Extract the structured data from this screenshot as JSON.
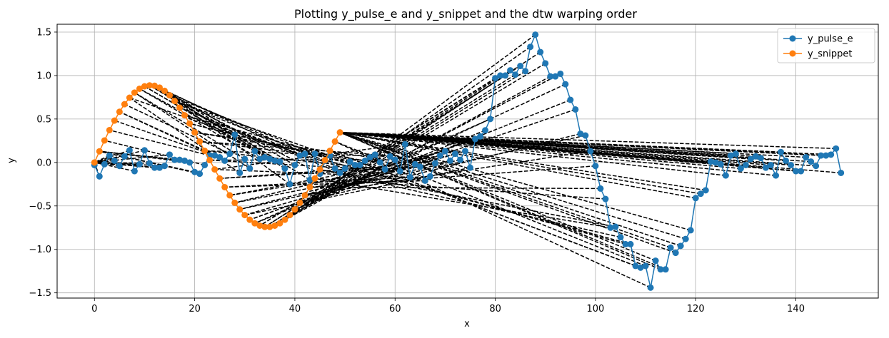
{
  "chart_data": {
    "type": "line",
    "title": "Plotting y_pulse_e and y_snippet and the dtw warping order",
    "xlabel": "x",
    "ylabel": "y",
    "xlim": [
      -7.45,
      156.45
    ],
    "ylim": [
      -1.56,
      1.59
    ],
    "xticks": [
      0,
      20,
      40,
      60,
      80,
      100,
      120,
      140
    ],
    "yticks": [
      -1.5,
      -1.0,
      -0.5,
      0.0,
      0.5,
      1.0,
      1.5
    ],
    "xtick_labels": [
      "0",
      "20",
      "40",
      "60",
      "80",
      "100",
      "120",
      "140"
    ],
    "ytick_labels": [
      "−1.5",
      "−1.0",
      "−0.5",
      "0.0",
      "0.5",
      "1.0",
      "1.5"
    ],
    "grid": true,
    "legend_position": "top-right",
    "series": [
      {
        "name": "y_pulse_e",
        "color": "#1f77b4",
        "marker": "circle",
        "x": [
          0,
          1,
          2,
          3,
          4,
          5,
          6,
          7,
          8,
          9,
          10,
          11,
          12,
          13,
          14,
          15,
          16,
          17,
          18,
          19,
          20,
          21,
          22,
          23,
          24,
          25,
          26,
          27,
          28,
          29,
          30,
          31,
          32,
          33,
          34,
          35,
          36,
          37,
          38,
          39,
          40,
          41,
          42,
          43,
          44,
          45,
          46,
          47,
          48,
          49,
          50,
          51,
          52,
          53,
          54,
          55,
          56,
          57,
          58,
          59,
          60,
          61,
          62,
          63,
          64,
          65,
          66,
          67,
          68,
          69,
          70,
          71,
          72,
          73,
          74,
          75,
          76,
          77,
          78,
          79,
          80,
          81,
          82,
          83,
          84,
          85,
          86,
          87,
          88,
          89,
          90,
          91,
          92,
          93,
          94,
          95,
          96,
          97,
          98,
          99,
          100,
          101,
          102,
          103,
          104,
          105,
          106,
          107,
          108,
          109,
          110,
          111,
          112,
          113,
          114,
          115,
          116,
          117,
          118,
          119,
          120,
          121,
          122,
          123,
          124,
          125,
          126,
          127,
          128,
          129,
          130,
          131,
          132,
          133,
          134,
          135,
          136,
          137,
          138,
          139,
          140,
          141,
          142,
          143,
          144,
          145,
          146,
          147,
          148,
          149
        ],
        "y": [
          -0.03,
          -0.16,
          -0.02,
          0.08,
          0.02,
          -0.04,
          0.07,
          0.14,
          -0.1,
          -0.02,
          0.14,
          -0.01,
          -0.06,
          -0.06,
          -0.04,
          0.09,
          0.03,
          0.03,
          0.02,
          0.0,
          -0.11,
          -0.13,
          -0.03,
          0.08,
          0.08,
          0.06,
          0.02,
          0.1,
          0.32,
          -0.12,
          0.04,
          -0.07,
          0.13,
          0.04,
          0.06,
          0.04,
          0.02,
          0.01,
          -0.07,
          -0.25,
          -0.03,
          0.08,
          0.1,
          -0.2,
          0.1,
          -0.13,
          0.02,
          0.08,
          -0.07,
          -0.12,
          -0.07,
          0.01,
          -0.03,
          -0.03,
          0.02,
          0.06,
          0.09,
          0.0,
          -0.08,
          0.07,
          0.03,
          -0.1,
          0.21,
          -0.17,
          -0.02,
          -0.05,
          -0.21,
          -0.16,
          -0.01,
          0.08,
          0.13,
          0.02,
          0.1,
          0.03,
          0.13,
          -0.06,
          0.27,
          0.3,
          0.37,
          0.5,
          0.97,
          1.0,
          1.0,
          1.06,
          1.01,
          1.11,
          1.05,
          1.33,
          1.47,
          1.27,
          1.14,
          0.99,
          0.99,
          1.02,
          0.9,
          0.72,
          0.61,
          0.33,
          0.31,
          0.13,
          -0.04,
          -0.3,
          -0.42,
          -0.75,
          -0.74,
          -0.86,
          -0.94,
          -0.94,
          -1.19,
          -1.21,
          -1.19,
          -1.44,
          -1.13,
          -1.23,
          -1.23,
          -0.98,
          -1.04,
          -0.96,
          -0.88,
          -0.78,
          -0.41,
          -0.36,
          -0.32,
          0.01,
          0.0,
          -0.02,
          -0.15,
          0.08,
          0.1,
          -0.07,
          -0.03,
          0.04,
          0.07,
          0.05,
          -0.06,
          -0.03,
          -0.15,
          0.12,
          0.02,
          -0.03,
          -0.1,
          -0.1,
          0.06,
          0.01,
          -0.04,
          0.08,
          0.08,
          0.09,
          0.16,
          -0.12
        ]
      },
      {
        "name": "y_snippet",
        "color": "#ff7f0e",
        "marker": "circle",
        "x": [
          0,
          1,
          2,
          3,
          4,
          5,
          6,
          7,
          8,
          9,
          10,
          11,
          12,
          13,
          14,
          15,
          16,
          17,
          18,
          19,
          20,
          21,
          22,
          23,
          24,
          25,
          26,
          27,
          28,
          29,
          30,
          31,
          32,
          33,
          34,
          35,
          36,
          37,
          38,
          39,
          40,
          41,
          42,
          43,
          44,
          45,
          46,
          47,
          48,
          49
        ],
        "y": [
          0.0,
          0.128,
          0.253,
          0.372,
          0.482,
          0.583,
          0.67,
          0.745,
          0.804,
          0.848,
          0.876,
          0.887,
          0.882,
          0.861,
          0.824,
          0.773,
          0.707,
          0.63,
          0.543,
          0.448,
          0.346,
          0.241,
          0.134,
          0.027,
          -0.08,
          -0.184,
          -0.284,
          -0.378,
          -0.464,
          -0.54,
          -0.605,
          -0.659,
          -0.7,
          -0.727,
          -0.741,
          -0.741,
          -0.727,
          -0.7,
          -0.659,
          -0.605,
          -0.54,
          -0.464,
          -0.378,
          -0.284,
          -0.184,
          -0.08,
          0.027,
          0.134,
          0.241,
          0.346
        ]
      }
    ],
    "warping_path": [
      [
        0,
        0
      ],
      [
        1,
        0
      ],
      [
        2,
        0
      ],
      [
        3,
        0
      ],
      [
        4,
        0
      ],
      [
        5,
        0
      ],
      [
        6,
        0
      ],
      [
        7,
        0
      ],
      [
        8,
        0
      ],
      [
        9,
        0
      ],
      [
        10,
        0
      ],
      [
        11,
        0
      ],
      [
        12,
        0
      ],
      [
        13,
        0
      ],
      [
        14,
        0
      ],
      [
        15,
        0
      ],
      [
        16,
        1
      ],
      [
        17,
        1
      ],
      [
        18,
        1
      ],
      [
        19,
        1
      ],
      [
        20,
        1
      ],
      [
        21,
        1
      ],
      [
        22,
        2
      ],
      [
        23,
        3
      ],
      [
        24,
        4
      ],
      [
        25,
        5
      ],
      [
        26,
        5
      ],
      [
        27,
        6
      ],
      [
        28,
        7
      ],
      [
        29,
        7
      ],
      [
        30,
        8
      ],
      [
        31,
        8
      ],
      [
        32,
        9
      ],
      [
        33,
        9
      ],
      [
        34,
        10
      ],
      [
        35,
        10
      ],
      [
        36,
        11
      ],
      [
        37,
        11
      ],
      [
        38,
        12
      ],
      [
        39,
        12
      ],
      [
        40,
        13
      ],
      [
        41,
        13
      ],
      [
        42,
        14
      ],
      [
        43,
        14
      ],
      [
        44,
        15
      ],
      [
        45,
        15
      ],
      [
        46,
        16
      ],
      [
        47,
        16
      ],
      [
        48,
        17
      ],
      [
        49,
        17
      ],
      [
        50,
        18
      ],
      [
        51,
        18
      ],
      [
        52,
        19
      ],
      [
        53,
        19
      ],
      [
        54,
        20
      ],
      [
        55,
        20
      ],
      [
        56,
        21
      ],
      [
        57,
        21
      ],
      [
        58,
        22
      ],
      [
        59,
        22
      ],
      [
        60,
        23
      ],
      [
        61,
        23
      ],
      [
        62,
        24
      ],
      [
        63,
        24
      ],
      [
        64,
        25
      ],
      [
        65,
        25
      ],
      [
        66,
        26
      ],
      [
        67,
        26
      ],
      [
        68,
        27
      ],
      [
        69,
        27
      ],
      [
        70,
        28
      ],
      [
        71,
        28
      ],
      [
        72,
        29
      ],
      [
        73,
        29
      ],
      [
        74,
        30
      ],
      [
        75,
        30
      ],
      [
        76,
        31
      ],
      [
        77,
        31
      ],
      [
        78,
        32
      ],
      [
        79,
        32
      ],
      [
        80,
        33
      ],
      [
        81,
        33
      ],
      [
        82,
        34
      ],
      [
        83,
        34
      ],
      [
        84,
        35
      ],
      [
        85,
        35
      ],
      [
        86,
        36
      ],
      [
        87,
        36
      ],
      [
        88,
        37
      ],
      [
        89,
        37
      ],
      [
        90,
        38
      ],
      [
        91,
        38
      ],
      [
        92,
        39
      ],
      [
        93,
        39
      ],
      [
        94,
        40
      ],
      [
        95,
        40
      ],
      [
        96,
        41
      ],
      [
        97,
        41
      ],
      [
        98,
        42
      ],
      [
        99,
        42
      ],
      [
        100,
        43
      ],
      [
        101,
        43
      ],
      [
        102,
        44
      ],
      [
        103,
        44
      ],
      [
        104,
        45
      ],
      [
        105,
        45
      ],
      [
        106,
        46
      ],
      [
        107,
        46
      ],
      [
        108,
        47
      ],
      [
        109,
        47
      ],
      [
        110,
        48
      ],
      [
        111,
        48
      ],
      [
        112,
        49
      ],
      [
        113,
        49
      ],
      [
        114,
        49
      ],
      [
        115,
        49
      ],
      [
        116,
        49
      ],
      [
        117,
        49
      ],
      [
        118,
        49
      ],
      [
        119,
        49
      ],
      [
        120,
        49
      ],
      [
        121,
        49
      ],
      [
        122,
        49
      ],
      [
        123,
        49
      ],
      [
        124,
        49
      ],
      [
        125,
        49
      ],
      [
        126,
        49
      ],
      [
        127,
        49
      ],
      [
        128,
        49
      ],
      [
        129,
        49
      ],
      [
        130,
        49
      ],
      [
        131,
        49
      ],
      [
        132,
        49
      ],
      [
        133,
        49
      ],
      [
        134,
        49
      ],
      [
        135,
        49
      ],
      [
        136,
        49
      ],
      [
        137,
        49
      ],
      [
        138,
        49
      ],
      [
        139,
        49
      ],
      [
        140,
        49
      ],
      [
        141,
        49
      ],
      [
        142,
        49
      ],
      [
        143,
        49
      ],
      [
        144,
        49
      ],
      [
        145,
        49
      ],
      [
        146,
        49
      ],
      [
        147,
        49
      ],
      [
        148,
        49
      ],
      [
        149,
        49
      ]
    ]
  }
}
